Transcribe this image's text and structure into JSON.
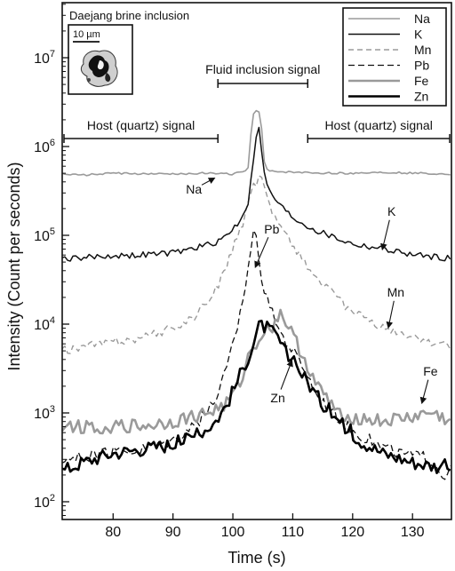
{
  "chart_data": {
    "type": "line",
    "title": "Daejang brine inclusion",
    "scale_bar_label": "10 µm",
    "xlabel": "Time (s)",
    "ylabel": "Intensity (Count per seconds)",
    "xlim": [
      71.5,
      136.5
    ],
    "ylog": true,
    "ylim_log10": [
      1.8,
      7.62
    ],
    "x_ticks": [
      80,
      90,
      100,
      110,
      120,
      130
    ],
    "y_ticks": [
      {
        "base": "10",
        "exp": "2",
        "log": 2
      },
      {
        "base": "10",
        "exp": "3",
        "log": 3
      },
      {
        "base": "10",
        "exp": "4",
        "log": 4
      },
      {
        "base": "10",
        "exp": "5",
        "log": 5
      },
      {
        "base": "10",
        "exp": "6",
        "log": 6
      },
      {
        "base": "10",
        "exp": "7",
        "log": 7
      }
    ],
    "annotations": {
      "fluid_signal": {
        "label": "Fluid inclusion signal",
        "x_range": [
          97.5,
          112.5
        ]
      },
      "host_left": {
        "label": "Host (quartz) signal",
        "x_range": [
          71.5,
          97.5
        ]
      },
      "host_right": {
        "label": "Host (quartz) signal",
        "x_range": [
          112.5,
          136.5
        ]
      }
    },
    "series_labels": [
      {
        "text": "Na",
        "x": 93.5,
        "y_log": 5.47,
        "arrow_to": [
          96.8,
          5.64
        ]
      },
      {
        "text": "K",
        "x": 126.5,
        "y_log": 5.22,
        "arrow_to": [
          125.0,
          4.85
        ]
      },
      {
        "text": "Pb",
        "x": 106.5,
        "y_log": 5.02,
        "arrow_to": [
          103.8,
          4.65
        ]
      },
      {
        "text": "Mn",
        "x": 127.2,
        "y_log": 4.31,
        "arrow_to": [
          126.0,
          3.97
        ]
      },
      {
        "text": "Zn",
        "x": 107.5,
        "y_log": 3.12,
        "arrow_to": [
          109.8,
          3.58
        ]
      },
      {
        "text": "Fe",
        "x": 133.0,
        "y_log": 3.42,
        "arrow_to": [
          131.6,
          3.12
        ]
      }
    ],
    "legend": {
      "position": "top-right",
      "entries": [
        "Na",
        "K",
        "Mn",
        "Pb",
        "Fe",
        "Zn"
      ]
    },
    "series": [
      {
        "name": "Na",
        "color": "#9a9a9a",
        "width": 1.6,
        "dash": "",
        "points": [
          [
            71.5,
            5.69
          ],
          [
            75,
            5.68
          ],
          [
            80,
            5.7
          ],
          [
            85,
            5.69
          ],
          [
            90,
            5.69
          ],
          [
            95,
            5.7
          ],
          [
            100,
            5.69
          ],
          [
            102.5,
            5.73
          ],
          [
            103.2,
            6.3
          ],
          [
            103.6,
            6.4
          ],
          [
            104.3,
            6.4
          ],
          [
            104.8,
            6.2
          ],
          [
            105.3,
            5.78
          ],
          [
            106,
            5.72
          ],
          [
            110,
            5.71
          ],
          [
            115,
            5.7
          ],
          [
            120,
            5.7
          ],
          [
            125,
            5.71
          ],
          [
            130,
            5.7
          ],
          [
            136.5,
            5.69
          ]
        ],
        "jitter": 0.01
      },
      {
        "name": "K",
        "color": "#111111",
        "width": 1.5,
        "dash": "",
        "points": [
          [
            71.5,
            4.74
          ],
          [
            75,
            4.75
          ],
          [
            80,
            4.77
          ],
          [
            85,
            4.78
          ],
          [
            90,
            4.8
          ],
          [
            92,
            4.83
          ],
          [
            95,
            4.88
          ],
          [
            97,
            4.92
          ],
          [
            99,
            5.0
          ],
          [
            101,
            5.15
          ],
          [
            102.5,
            5.35
          ],
          [
            103.2,
            5.7
          ],
          [
            103.7,
            6.05
          ],
          [
            104.2,
            6.25
          ],
          [
            104.6,
            6.1
          ],
          [
            105.2,
            5.7
          ],
          [
            106,
            5.5
          ],
          [
            108,
            5.33
          ],
          [
            110,
            5.2
          ],
          [
            112,
            5.12
          ],
          [
            114,
            5.05
          ],
          [
            116,
            5.0
          ],
          [
            118,
            4.95
          ],
          [
            120,
            4.9
          ],
          [
            125,
            4.85
          ],
          [
            130,
            4.78
          ],
          [
            136.5,
            4.74
          ]
        ],
        "jitter": 0.035
      },
      {
        "name": "Mn",
        "color": "#9a9a9a",
        "width": 1.4,
        "dash": "6,4",
        "points": [
          [
            71.5,
            3.7
          ],
          [
            75,
            3.75
          ],
          [
            80,
            3.8
          ],
          [
            85,
            3.85
          ],
          [
            90,
            3.95
          ],
          [
            93,
            4.05
          ],
          [
            96,
            4.25
          ],
          [
            98,
            4.5
          ],
          [
            100,
            4.85
          ],
          [
            102,
            5.2
          ],
          [
            103.5,
            5.55
          ],
          [
            104.5,
            5.65
          ],
          [
            105.5,
            5.5
          ],
          [
            107,
            5.2
          ],
          [
            109,
            5.0
          ],
          [
            111,
            4.8
          ],
          [
            113,
            4.6
          ],
          [
            115,
            4.45
          ],
          [
            118,
            4.25
          ],
          [
            121,
            4.1
          ],
          [
            125,
            3.95
          ],
          [
            130,
            3.85
          ],
          [
            136.5,
            3.75
          ]
        ],
        "jitter": 0.05
      },
      {
        "name": "Pb",
        "color": "#111111",
        "width": 1.3,
        "dash": "7,4",
        "points": [
          [
            71.5,
            2.45
          ],
          [
            75,
            2.5
          ],
          [
            80,
            2.55
          ],
          [
            85,
            2.6
          ],
          [
            90,
            2.7
          ],
          [
            95,
            2.95
          ],
          [
            97,
            3.15
          ],
          [
            99,
            3.5
          ],
          [
            100.5,
            3.9
          ],
          [
            102,
            4.4
          ],
          [
            103,
            4.85
          ],
          [
            103.5,
            5.1
          ],
          [
            104.3,
            4.8
          ],
          [
            105,
            4.45
          ],
          [
            106,
            4.2
          ],
          [
            108,
            3.9
          ],
          [
            110,
            3.7
          ],
          [
            112,
            3.5
          ],
          [
            114,
            3.2
          ],
          [
            117,
            3.0
          ],
          [
            120,
            2.8
          ],
          [
            124,
            2.65
          ],
          [
            128,
            2.55
          ],
          [
            132,
            2.5
          ],
          [
            134,
            2.4
          ],
          [
            135,
            2.3
          ],
          [
            136.5,
            2.35
          ]
        ],
        "jitter": 0.07
      },
      {
        "name": "Fe",
        "color": "#9a9a9a",
        "width": 2.6,
        "dash": "",
        "points": [
          [
            71.5,
            2.85
          ],
          [
            75,
            2.85
          ],
          [
            80,
            2.85
          ],
          [
            85,
            2.85
          ],
          [
            90,
            2.9
          ],
          [
            93,
            2.95
          ],
          [
            96,
            3.0
          ],
          [
            99,
            3.1
          ],
          [
            101,
            3.3
          ],
          [
            103,
            3.7
          ],
          [
            105,
            3.9
          ],
          [
            107,
            4.0
          ],
          [
            108,
            4.15
          ],
          [
            109,
            4.0
          ],
          [
            110.5,
            3.8
          ],
          [
            112,
            3.6
          ],
          [
            114,
            3.3
          ],
          [
            117,
            3.05
          ],
          [
            120,
            2.95
          ],
          [
            125,
            2.9
          ],
          [
            130,
            2.95
          ],
          [
            133,
            3.0
          ],
          [
            136.5,
            2.9
          ]
        ],
        "jitter": 0.08
      },
      {
        "name": "Zn",
        "color": "#000000",
        "width": 2.6,
        "dash": "",
        "points": [
          [
            71.5,
            2.35
          ],
          [
            75,
            2.45
          ],
          [
            80,
            2.55
          ],
          [
            85,
            2.6
          ],
          [
            90,
            2.65
          ],
          [
            94,
            2.75
          ],
          [
            97,
            2.9
          ],
          [
            99,
            3.1
          ],
          [
            101,
            3.4
          ],
          [
            103,
            3.7
          ],
          [
            104.5,
            4.0
          ],
          [
            106,
            3.95
          ],
          [
            107.5,
            3.85
          ],
          [
            109,
            3.65
          ],
          [
            111,
            3.5
          ],
          [
            113,
            3.3
          ],
          [
            115,
            3.1
          ],
          [
            118,
            2.9
          ],
          [
            121,
            2.7
          ],
          [
            125,
            2.55
          ],
          [
            130,
            2.45
          ],
          [
            134,
            2.4
          ],
          [
            136.5,
            2.4
          ]
        ],
        "jitter": 0.08
      }
    ]
  }
}
